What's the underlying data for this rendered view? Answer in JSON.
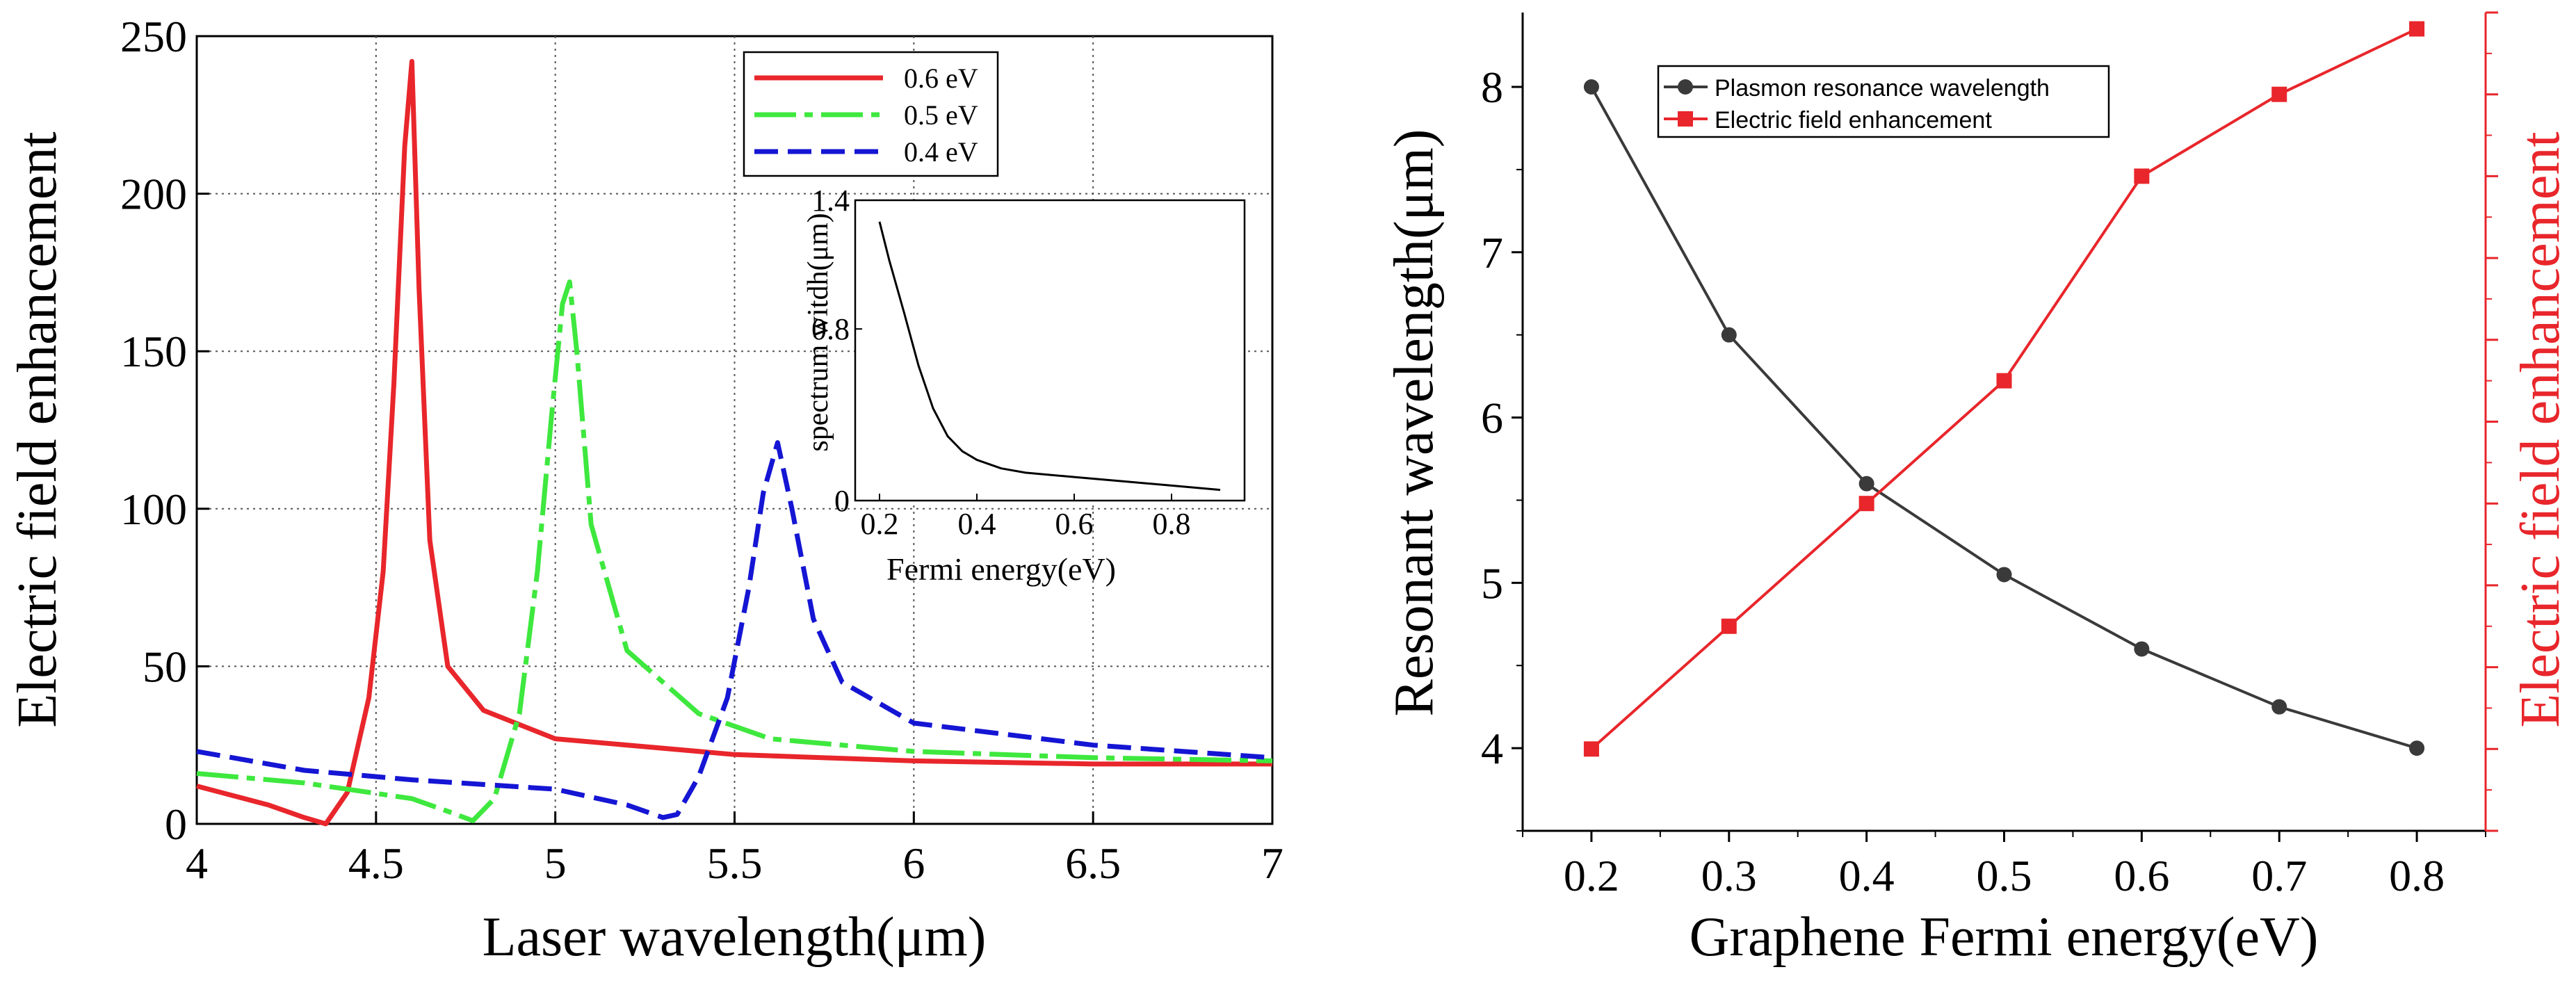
{
  "chart_data": [
    {
      "type": "line",
      "xlabel": "Laser wavelength(μm)",
      "ylabel": "Electric field enhancement",
      "xlim": [
        4,
        7
      ],
      "ylim": [
        0,
        250
      ],
      "xticks": [
        "4",
        "4.5",
        "5",
        "5.5",
        "6",
        "6.5",
        "7"
      ],
      "yticks": [
        "0",
        "50",
        "100",
        "150",
        "200",
        "250"
      ],
      "grid": true,
      "legend_position": "top-center",
      "series": [
        {
          "name": "0.6 eV",
          "color": "#e8262b",
          "style": "solid",
          "x": [
            4.0,
            4.1,
            4.2,
            4.3,
            4.36,
            4.42,
            4.48,
            4.52,
            4.55,
            4.58,
            4.6,
            4.62,
            4.65,
            4.7,
            4.8,
            5.0,
            5.5,
            6.0,
            6.5,
            7.0
          ],
          "y": [
            12,
            9,
            6,
            2,
            0,
            10,
            40,
            80,
            140,
            215,
            242,
            170,
            90,
            50,
            36,
            27,
            22,
            20,
            19,
            19
          ]
        },
        {
          "name": "0.5 eV",
          "color": "#3ee83e",
          "style": "dashdot",
          "x": [
            4.0,
            4.3,
            4.6,
            4.7,
            4.77,
            4.83,
            4.9,
            4.95,
            4.99,
            5.02,
            5.04,
            5.06,
            5.1,
            5.2,
            5.4,
            5.6,
            6.0,
            6.5,
            7.0
          ],
          "y": [
            16,
            13,
            8,
            4,
            1,
            8,
            35,
            80,
            130,
            165,
            172,
            150,
            95,
            55,
            35,
            27,
            23,
            21,
            20
          ]
        },
        {
          "name": "0.4 eV",
          "color": "#1515d4",
          "style": "dashed",
          "x": [
            4.0,
            4.3,
            4.6,
            5.0,
            5.2,
            5.3,
            5.34,
            5.4,
            5.48,
            5.54,
            5.58,
            5.62,
            5.66,
            5.72,
            5.8,
            6.0,
            6.5,
            7.0
          ],
          "y": [
            23,
            17,
            14,
            11,
            6,
            2,
            3,
            15,
            40,
            75,
            105,
            121,
            100,
            65,
            45,
            32,
            25,
            21
          ]
        }
      ],
      "inset": {
        "xlabel": "Fermi energy(eV)",
        "ylabel": "spectrum witdh(μm)",
        "xlim": [
          0.15,
          0.95
        ],
        "ylim": [
          0,
          1.4
        ],
        "xticks": [
          "0.2",
          "0.4",
          "0.6",
          "0.8"
        ],
        "yticks": [
          "0",
          "0.8",
          "1.4"
        ],
        "ytick_values": [
          0,
          0.8,
          1.4
        ],
        "series": [
          {
            "name": "spectrum width",
            "color": "#000000",
            "x": [
              0.2,
              0.22,
              0.25,
              0.28,
              0.31,
              0.34,
              0.37,
              0.4,
              0.45,
              0.5,
              0.6,
              0.7,
              0.8,
              0.9
            ],
            "y": [
              1.3,
              1.12,
              0.88,
              0.63,
              0.43,
              0.3,
              0.23,
              0.19,
              0.15,
              0.13,
              0.11,
              0.09,
              0.07,
              0.05
            ]
          }
        ]
      }
    },
    {
      "type": "line",
      "xlabel": "Graphene Fermi energy(eV)",
      "ylabel": "Resonant wavelength(μm)",
      "ylabel_right": "Electric field enhancement",
      "xlim": [
        0.15,
        0.85
      ],
      "ylim": [
        3.5,
        8.45
      ],
      "y2lim": [
        0,
        10
      ],
      "xticks": [
        "0.2",
        "0.3",
        "0.4",
        "0.5",
        "0.6",
        "0.7",
        "0.8"
      ],
      "yticks": [
        "4",
        "5",
        "6",
        "7",
        "8"
      ],
      "grid": false,
      "legend_position": "top-center",
      "series": [
        {
          "name": "Plasmon resonance wavelength",
          "color": "#3a3a3a",
          "marker": "circle",
          "axis": "left",
          "x": [
            0.2,
            0.3,
            0.4,
            0.5,
            0.6,
            0.7,
            0.8
          ],
          "y": [
            8.0,
            6.5,
            5.6,
            5.05,
            4.6,
            4.25,
            4.0
          ]
        },
        {
          "name": "Electric field enhancement",
          "color": "#e8262b",
          "marker": "square",
          "axis": "right",
          "x": [
            0.2,
            0.3,
            0.4,
            0.5,
            0.6,
            0.7,
            0.8
          ],
          "y": [
            1.0,
            2.5,
            4.0,
            5.5,
            8.0,
            9.0,
            9.8
          ]
        }
      ]
    }
  ]
}
